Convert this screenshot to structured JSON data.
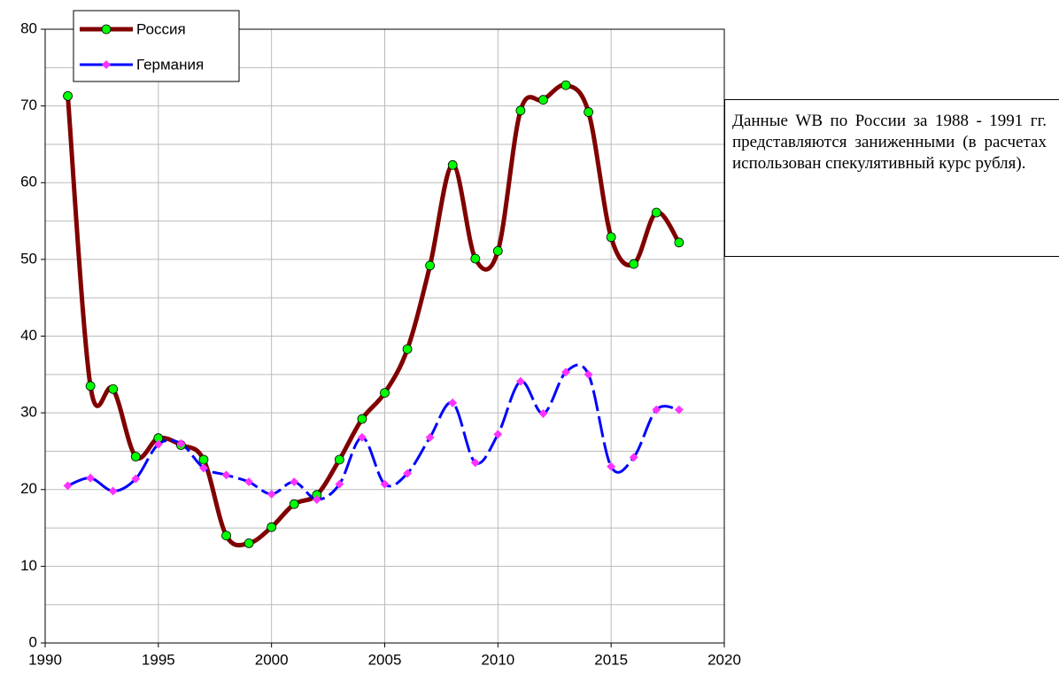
{
  "chart_data": {
    "type": "line",
    "x": [
      1991,
      1992,
      1993,
      1994,
      1995,
      1996,
      1997,
      1998,
      1999,
      2000,
      2001,
      2002,
      2003,
      2004,
      2005,
      2006,
      2007,
      2008,
      2009,
      2010,
      2011,
      2012,
      2013,
      2014,
      2015,
      2016,
      2017,
      2018
    ],
    "series": [
      {
        "name": "Россия",
        "color": "#800000",
        "marker_color": "#00ff00",
        "marker": "circle",
        "values": [
          71.3,
          33.5,
          33.1,
          24.3,
          26.7,
          25.8,
          23.9,
          14.0,
          13.0,
          15.1,
          18.1,
          19.3,
          23.9,
          29.2,
          32.6,
          38.3,
          49.2,
          62.3,
          50.1,
          51.1,
          69.4,
          70.8,
          72.7,
          69.2,
          52.9,
          49.4,
          56.1,
          52.2
        ]
      },
      {
        "name": "Германия",
        "color": "#0000ff",
        "marker_color": "#ff33ff",
        "marker": "diamond",
        "values": [
          20.5,
          21.5,
          19.8,
          21.4,
          25.9,
          26.0,
          22.8,
          21.9,
          21.0,
          19.4,
          21.0,
          18.7,
          20.7,
          26.8,
          20.7,
          22.1,
          26.8,
          31.3,
          23.5,
          27.2,
          34.1,
          29.9,
          35.3,
          35.0,
          23.0,
          24.2,
          30.4,
          30.4
        ]
      }
    ],
    "xlim": [
      1990,
      2020
    ],
    "xticks": [
      1990,
      1995,
      2000,
      2005,
      2010,
      2015,
      2020
    ],
    "ylim": [
      0,
      80
    ],
    "yticks": [
      0,
      10,
      20,
      30,
      40,
      50,
      60,
      70,
      80
    ],
    "yminor_grid": [
      5,
      15,
      25,
      35,
      45,
      55,
      65,
      75
    ],
    "grid": true,
    "legend": "upper left",
    "annotation": "Данные WB по России  за 1988 -  1991  гг.  представляются заниженными  (в  расчетах использован  спекулятивный курс рубля)."
  }
}
